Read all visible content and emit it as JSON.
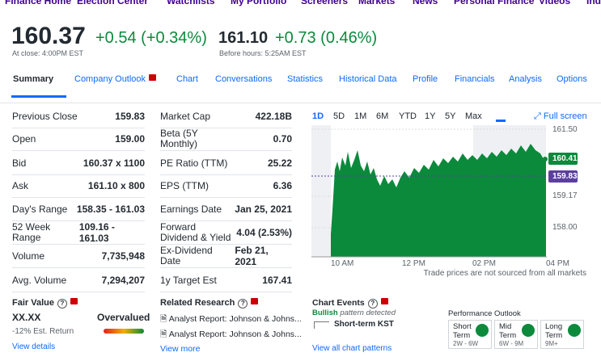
{
  "nav": {
    "items": [
      "Finance Home",
      "Election Center",
      "Watchlists",
      "My Portfolio",
      "Screeners",
      "Markets",
      "News",
      "Personal Finance",
      "Videos",
      "Ind"
    ]
  },
  "quote": {
    "price": "160.37",
    "change": "+0.54 (+0.34%)",
    "close_label": "At close: 4:00PM EST",
    "pre_price": "161.10",
    "pre_change": "+0.73 (0.46%)",
    "pre_label": "Before hours: 5:25AM EST"
  },
  "tabs": [
    "Summary",
    "Company Outlook",
    "Chart",
    "Conversations",
    "Statistics",
    "Historical Data",
    "Profile",
    "Financials",
    "Analysis",
    "Options"
  ],
  "summary": {
    "left": [
      [
        "Previous Close",
        "159.83"
      ],
      [
        "Open",
        "159.00"
      ],
      [
        "Bid",
        "160.37 x 1100"
      ],
      [
        "Ask",
        "161.10 x 800"
      ],
      [
        "Day's Range",
        "158.35 - 161.03"
      ],
      [
        "52 Week Range",
        "109.16 - 161.03"
      ],
      [
        "Volume",
        "7,735,948"
      ],
      [
        "Avg. Volume",
        "7,294,207"
      ]
    ],
    "right": [
      [
        "Market Cap",
        "422.18B"
      ],
      [
        "Beta (5Y Monthly)",
        "0.70"
      ],
      [
        "PE Ratio (TTM)",
        "25.22"
      ],
      [
        "EPS (TTM)",
        "6.36"
      ],
      [
        "Earnings Date",
        "Jan 25, 2021"
      ],
      [
        "Forward Dividend & Yield",
        "4.04 (2.53%)"
      ],
      [
        "Ex-Dividend Date",
        "Feb 21, 2021"
      ],
      [
        "1y Target Est",
        "167.41"
      ]
    ]
  },
  "fair_value": {
    "title": "Fair Value",
    "value": "XX.XX",
    "status": "Overvalued",
    "est_return": "-12% Est. Return",
    "link": "View details"
  },
  "research": {
    "title": "Related Research",
    "items": [
      "Analyst Report: Johnson & Johns...",
      "Analyst Report: Johnson & Johns..."
    ],
    "link": "View more"
  },
  "chart": {
    "ranges": [
      "1D",
      "5D",
      "1M",
      "6M",
      "YTD",
      "1Y",
      "5Y",
      "Max"
    ],
    "full_screen": "Full screen",
    "y_labels": [
      "161.50",
      "159.17",
      "158.00"
    ],
    "current_badge": "160.41",
    "prev_badge": "159.83",
    "x_labels": [
      "10 AM",
      "12 PM",
      "02 PM",
      "04 PM"
    ],
    "note": "Trade prices are not sourced from all markets"
  },
  "events": {
    "title": "Chart Events",
    "bullish": "Bullish",
    "detected": "pattern detected",
    "pattern": "Short-term KST",
    "link": "View all chart patterns"
  },
  "outlook": {
    "title": "Performance Outlook",
    "items": [
      {
        "term": "Short Term",
        "range": "2W - 6W"
      },
      {
        "term": "Mid Term",
        "range": "6W - 9M"
      },
      {
        "term": "Long Term",
        "range": "9M+"
      }
    ]
  }
}
